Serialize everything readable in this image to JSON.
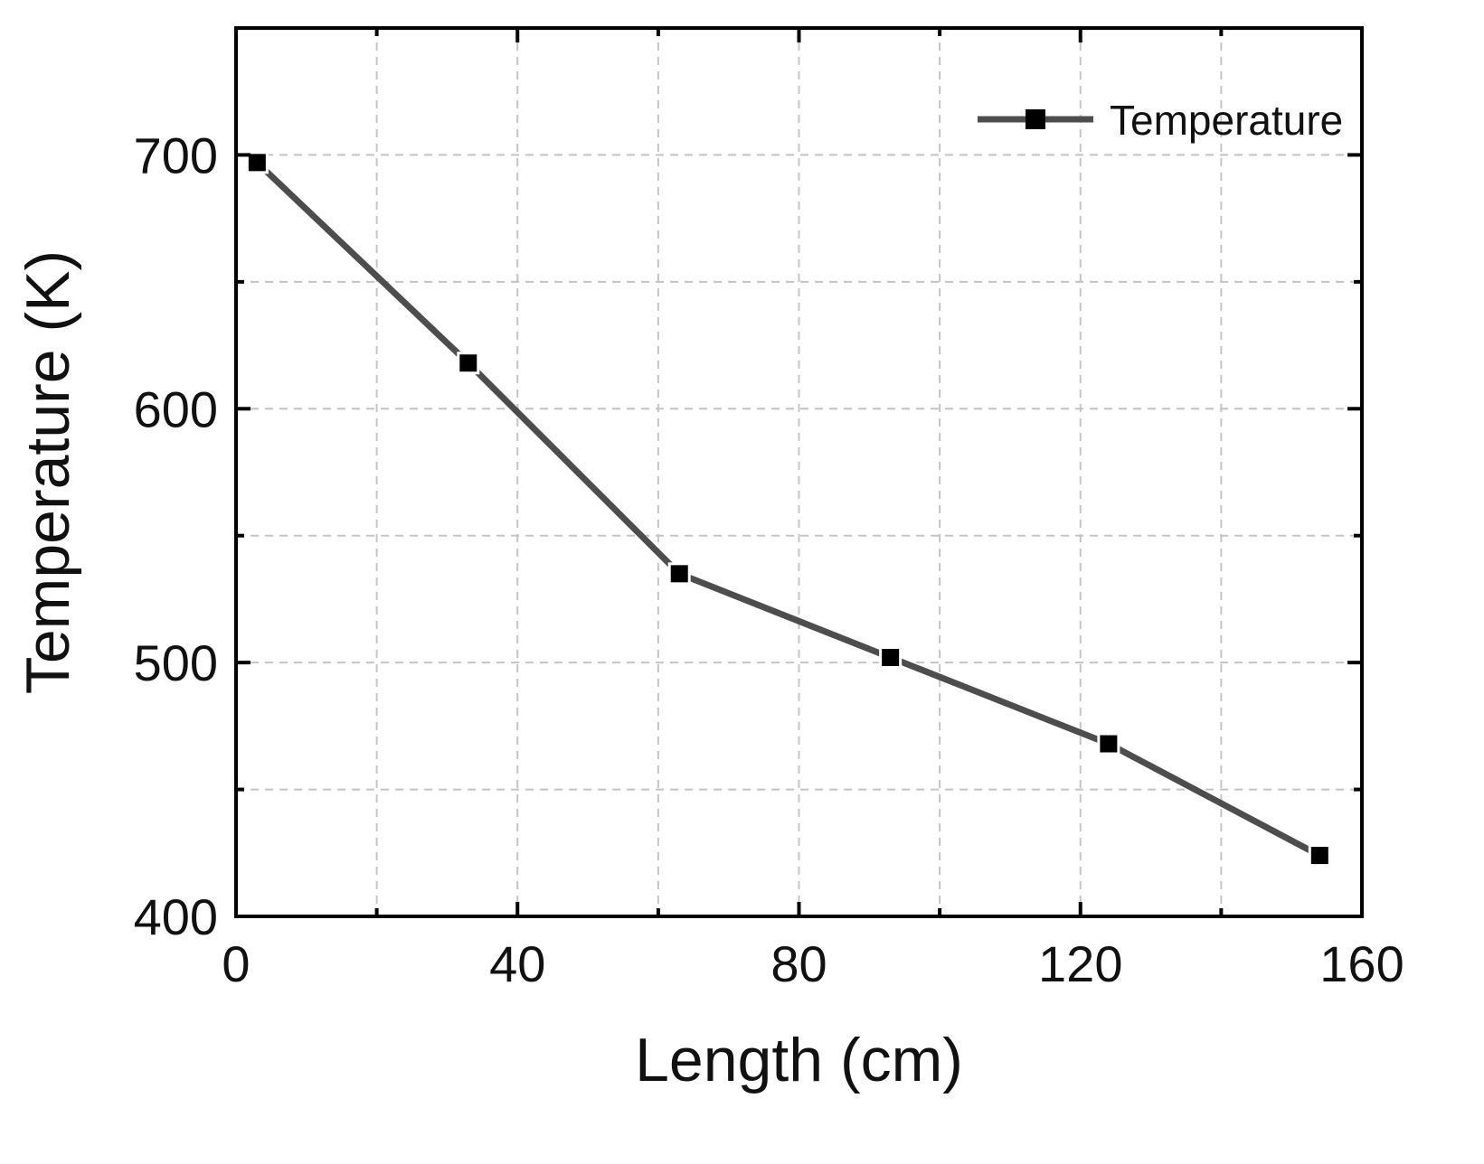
{
  "chart_data": {
    "type": "line",
    "title": "",
    "xlabel": "Length (cm)",
    "ylabel": "Temperature (K)",
    "xlim": [
      0,
      160
    ],
    "ylim": [
      400,
      750
    ],
    "xticks": [
      0,
      40,
      80,
      120,
      160
    ],
    "xtick_labels": [
      "0",
      "40",
      "80",
      "120",
      "160"
    ],
    "xticks_minor": [
      20,
      60,
      100,
      140
    ],
    "yticks": [
      400,
      500,
      600,
      700
    ],
    "ytick_labels": [
      "400",
      "500",
      "600",
      "700"
    ],
    "yticks_minor": [
      450,
      550,
      650
    ],
    "grid": true,
    "legend_position": "top-right",
    "series": [
      {
        "name": "Temperature",
        "color": "#4d4d4d",
        "marker": "square",
        "x": [
          3,
          33,
          63,
          93,
          124,
          154
        ],
        "y": [
          697,
          618,
          535,
          502,
          468,
          424
        ]
      }
    ]
  }
}
